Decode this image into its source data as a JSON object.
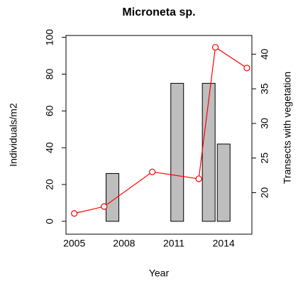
{
  "chart_data": {
    "type": "bar",
    "title": "Microneta sp.",
    "xlabel": "Year",
    "ylabel": "Individuals/m2",
    "y2label": "Transects with vegetation",
    "xlim": [
      2004.5,
      2015.7
    ],
    "xticks": [
      2005,
      2008,
      2011,
      2014
    ],
    "ylim": [
      -7,
      101
    ],
    "yticks": [
      0,
      20,
      40,
      60,
      80,
      100
    ],
    "y2lim": [
      14,
      42.7
    ],
    "y2ticks": [
      20,
      25,
      30,
      35,
      40
    ],
    "series": [
      {
        "type": "bar",
        "color": "#bebebe",
        "x": [
          2007.3,
          2011.2,
          2013.1,
          2014.0
        ],
        "values": [
          26,
          75,
          75,
          42
        ]
      },
      {
        "type": "line",
        "axis": "y2",
        "color": "#ff0000",
        "x": [
          2005,
          2006.8,
          2009.7,
          2012.5,
          2013.5,
          2015.4
        ],
        "values": [
          17,
          18,
          23,
          22,
          41,
          38
        ]
      }
    ]
  }
}
